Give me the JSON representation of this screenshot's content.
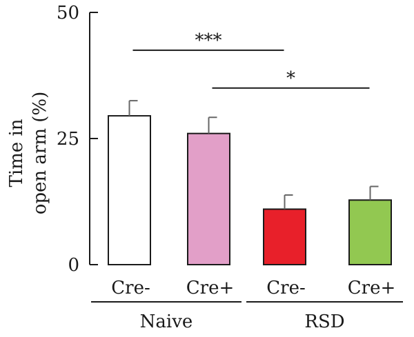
{
  "chart_data": {
    "type": "bar",
    "ylabel_lines": [
      "Time in",
      "open arm (%)"
    ],
    "ylim": [
      0,
      50
    ],
    "yticks": [
      "0",
      "25",
      "50"
    ],
    "ytick_values": [
      0,
      25,
      50
    ],
    "categories": [
      "Cre-",
      "Cre+",
      "Cre-",
      "Cre+"
    ],
    "groups": [
      {
        "label": "Naive",
        "bars": [
          0,
          1
        ]
      },
      {
        "label": "RSD",
        "bars": [
          2,
          3
        ]
      }
    ],
    "values": [
      29.5,
      26.0,
      11.0,
      12.8
    ],
    "errors": [
      3.0,
      3.2,
      2.8,
      2.7
    ],
    "colors": [
      "#ffffff",
      "#e29fc8",
      "#e8202a",
      "#92c851"
    ],
    "edge_color": "#1a1a1a",
    "error_color": "#666666",
    "significance": [
      {
        "text": "***",
        "from_bar": 0,
        "to_bar": 2,
        "level": 42.5
      },
      {
        "text": "*",
        "from_bar": 1,
        "to_bar": 3,
        "level": 35.0
      }
    ]
  }
}
